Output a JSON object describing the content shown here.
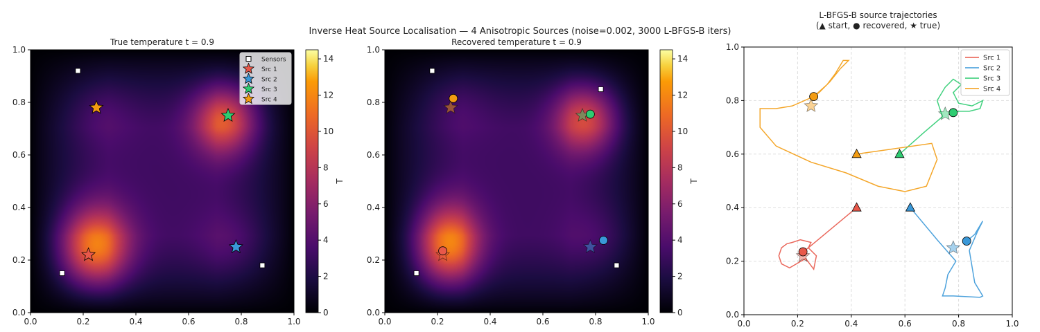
{
  "figure_title": "Inverse Heat Source Localisation — 4 Anisotropic Sources  (noise=0.002, 3000 L-BFGS-B iters)",
  "colors": {
    "Src 1": "#e8584a",
    "Src 2": "#3a98d8",
    "Src 3": "#2ecc71",
    "Src 4": "#f39c12"
  },
  "chart_data": [
    {
      "type": "heatmap",
      "title": "True temperature  t = 0.9",
      "colormap": "inferno",
      "xlim": [
        0,
        1
      ],
      "ylim": [
        0,
        1
      ],
      "xticks": [
        "0.0",
        "0.2",
        "0.4",
        "0.6",
        "0.8",
        "1.0"
      ],
      "yticks": [
        "0.0",
        "0.2",
        "0.4",
        "0.6",
        "0.8",
        "1.0"
      ],
      "colorbar": {
        "label": "T",
        "range": [
          0,
          14.5
        ],
        "ticks": [
          "0",
          "2",
          "4",
          "6",
          "8",
          "10",
          "12",
          "14"
        ]
      },
      "legend": {
        "placement": "top-right",
        "entries": [
          "Sensors",
          "Src 1",
          "Src 2",
          "Src 3",
          "Src 4"
        ]
      },
      "sensors": [
        [
          0.18,
          0.92
        ],
        [
          0.82,
          0.85
        ],
        [
          0.12,
          0.15
        ],
        [
          0.88,
          0.18
        ]
      ],
      "true_sources": [
        {
          "name": "Src 1",
          "x": 0.22,
          "y": 0.22
        },
        {
          "name": "Src 2",
          "x": 0.78,
          "y": 0.25
        },
        {
          "name": "Src 3",
          "x": 0.75,
          "y": 0.75
        },
        {
          "name": "Src 4",
          "x": 0.25,
          "y": 0.78
        }
      ]
    },
    {
      "type": "heatmap",
      "title": "Recovered temperature  t = 0.9",
      "colormap": "inferno",
      "xlim": [
        0,
        1
      ],
      "ylim": [
        0,
        1
      ],
      "xticks": [
        "0.0",
        "0.2",
        "0.4",
        "0.6",
        "0.8",
        "1.0"
      ],
      "yticks": [
        "0.0",
        "0.2",
        "0.4",
        "0.6",
        "0.8",
        "1.0"
      ],
      "colorbar": {
        "label": "T",
        "range": [
          0,
          14.5
        ],
        "ticks": [
          "0",
          "2",
          "4",
          "6",
          "8",
          "10",
          "12",
          "14"
        ]
      },
      "recovered_sources": [
        {
          "name": "Src 1",
          "x": 0.22,
          "y": 0.235
        },
        {
          "name": "Src 2",
          "x": 0.83,
          "y": 0.275
        },
        {
          "name": "Src 3",
          "x": 0.78,
          "y": 0.755
        },
        {
          "name": "Src 4",
          "x": 0.26,
          "y": 0.815
        }
      ]
    },
    {
      "type": "line",
      "title": "L-BFGS-B source trajectories",
      "subtitle": "(▲ start, ● recovered, ★ true)",
      "xlim": [
        0,
        1
      ],
      "ylim": [
        0,
        1
      ],
      "grid": true,
      "xticks": [
        "0.0",
        "0.2",
        "0.4",
        "0.6",
        "0.8",
        "1.0"
      ],
      "yticks": [
        "0.0",
        "0.2",
        "0.4",
        "0.6",
        "0.8",
        "1.0"
      ],
      "legend": {
        "placement": "top-right"
      },
      "series": [
        {
          "name": "Src 1",
          "start": [
            0.42,
            0.4
          ],
          "recovered": [
            0.22,
            0.235
          ],
          "true": [
            0.22,
            0.22
          ],
          "path": [
            [
              0.42,
              0.4
            ],
            [
              0.3,
              0.3
            ],
            [
              0.24,
              0.25
            ],
            [
              0.27,
              0.22
            ],
            [
              0.26,
              0.17
            ],
            [
              0.23,
              0.21
            ],
            [
              0.17,
              0.175
            ],
            [
              0.14,
              0.19
            ],
            [
              0.13,
              0.22
            ],
            [
              0.14,
              0.25
            ],
            [
              0.16,
              0.265
            ],
            [
              0.18,
              0.27
            ],
            [
              0.21,
              0.28
            ],
            [
              0.25,
              0.27
            ],
            [
              0.24,
              0.25
            ],
            [
              0.22,
              0.235
            ]
          ]
        },
        {
          "name": "Src 2",
          "start": [
            0.62,
            0.4
          ],
          "recovered": [
            0.83,
            0.275
          ],
          "true": [
            0.78,
            0.25
          ],
          "path": [
            [
              0.62,
              0.4
            ],
            [
              0.72,
              0.28
            ],
            [
              0.79,
              0.2
            ],
            [
              0.76,
              0.15
            ],
            [
              0.75,
              0.1
            ],
            [
              0.74,
              0.07
            ],
            [
              0.78,
              0.07
            ],
            [
              0.88,
              0.065
            ],
            [
              0.89,
              0.07
            ],
            [
              0.86,
              0.12
            ],
            [
              0.85,
              0.18
            ],
            [
              0.84,
              0.24
            ],
            [
              0.87,
              0.31
            ],
            [
              0.89,
              0.35
            ],
            [
              0.86,
              0.3
            ],
            [
              0.83,
              0.275
            ]
          ]
        },
        {
          "name": "Src 3",
          "start": [
            0.58,
            0.6
          ],
          "recovered": [
            0.78,
            0.755
          ],
          "true": [
            0.75,
            0.75
          ],
          "path": [
            [
              0.58,
              0.6
            ],
            [
              0.67,
              0.68
            ],
            [
              0.74,
              0.74
            ],
            [
              0.72,
              0.8
            ],
            [
              0.75,
              0.85
            ],
            [
              0.78,
              0.88
            ],
            [
              0.81,
              0.86
            ],
            [
              0.78,
              0.83
            ],
            [
              0.8,
              0.79
            ],
            [
              0.85,
              0.78
            ],
            [
              0.89,
              0.8
            ],
            [
              0.88,
              0.77
            ],
            [
              0.84,
              0.76
            ],
            [
              0.8,
              0.76
            ],
            [
              0.78,
              0.755
            ]
          ]
        },
        {
          "name": "Src 4",
          "start": [
            0.42,
            0.6
          ],
          "recovered": [
            0.26,
            0.815
          ],
          "true": [
            0.25,
            0.78
          ],
          "path": [
            [
              0.42,
              0.6
            ],
            [
              0.7,
              0.64
            ],
            [
              0.72,
              0.58
            ],
            [
              0.68,
              0.48
            ],
            [
              0.6,
              0.46
            ],
            [
              0.5,
              0.48
            ],
            [
              0.38,
              0.53
            ],
            [
              0.25,
              0.57
            ],
            [
              0.12,
              0.63
            ],
            [
              0.06,
              0.7
            ],
            [
              0.06,
              0.77
            ],
            [
              0.12,
              0.77
            ],
            [
              0.18,
              0.78
            ],
            [
              0.26,
              0.815
            ],
            [
              0.31,
              0.86
            ],
            [
              0.34,
              0.9
            ],
            [
              0.37,
              0.95
            ],
            [
              0.39,
              0.95
            ],
            [
              0.36,
              0.92
            ],
            [
              0.32,
              0.87
            ],
            [
              0.28,
              0.83
            ],
            [
              0.26,
              0.815
            ]
          ]
        }
      ]
    }
  ]
}
